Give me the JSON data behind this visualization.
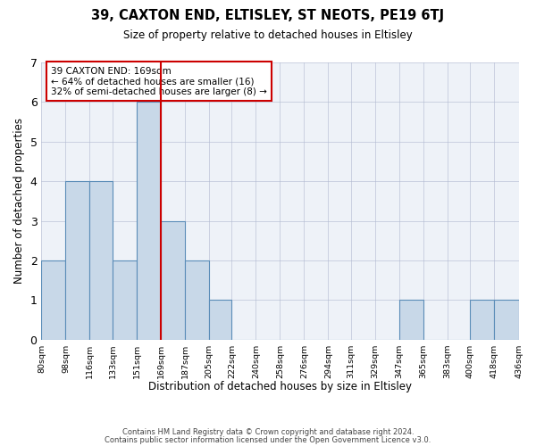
{
  "title": "39, CAXTON END, ELTISLEY, ST NEOTS, PE19 6TJ",
  "subtitle": "Size of property relative to detached houses in Eltisley",
  "xlabel": "Distribution of detached houses by size in Eltisley",
  "ylabel": "Number of detached properties",
  "bar_edges": [
    80,
    98,
    116,
    133,
    151,
    169,
    187,
    205,
    222,
    240,
    258,
    276,
    294,
    311,
    329,
    347,
    365,
    383,
    400,
    418,
    436
  ],
  "bar_heights": [
    2,
    4,
    4,
    2,
    6,
    3,
    2,
    1,
    0,
    0,
    0,
    0,
    0,
    0,
    0,
    1,
    0,
    0,
    1,
    1
  ],
  "bar_color": "#C8D8E8",
  "bar_edge_color": "#5B8DB8",
  "vline_x": 169,
  "vline_color": "#CC0000",
  "annotation_text": "39 CAXTON END: 169sqm\n← 64% of detached houses are smaller (16)\n32% of semi-detached houses are larger (8) →",
  "annotation_box_color": "#ffffff",
  "annotation_box_edge_color": "#CC0000",
  "ylim": [
    0,
    7
  ],
  "yticks": [
    0,
    1,
    2,
    3,
    4,
    5,
    6,
    7
  ],
  "tick_labels": [
    "80sqm",
    "98sqm",
    "116sqm",
    "133sqm",
    "151sqm",
    "169sqm",
    "187sqm",
    "205sqm",
    "222sqm",
    "240sqm",
    "258sqm",
    "276sqm",
    "294sqm",
    "311sqm",
    "329sqm",
    "347sqm",
    "365sqm",
    "383sqm",
    "400sqm",
    "418sqm",
    "436sqm"
  ],
  "footer_line1": "Contains HM Land Registry data © Crown copyright and database right 2024.",
  "footer_line2": "Contains public sector information licensed under the Open Government Licence v3.0.",
  "grid_color": "#b0b8d0",
  "bg_color": "#eef2f8"
}
